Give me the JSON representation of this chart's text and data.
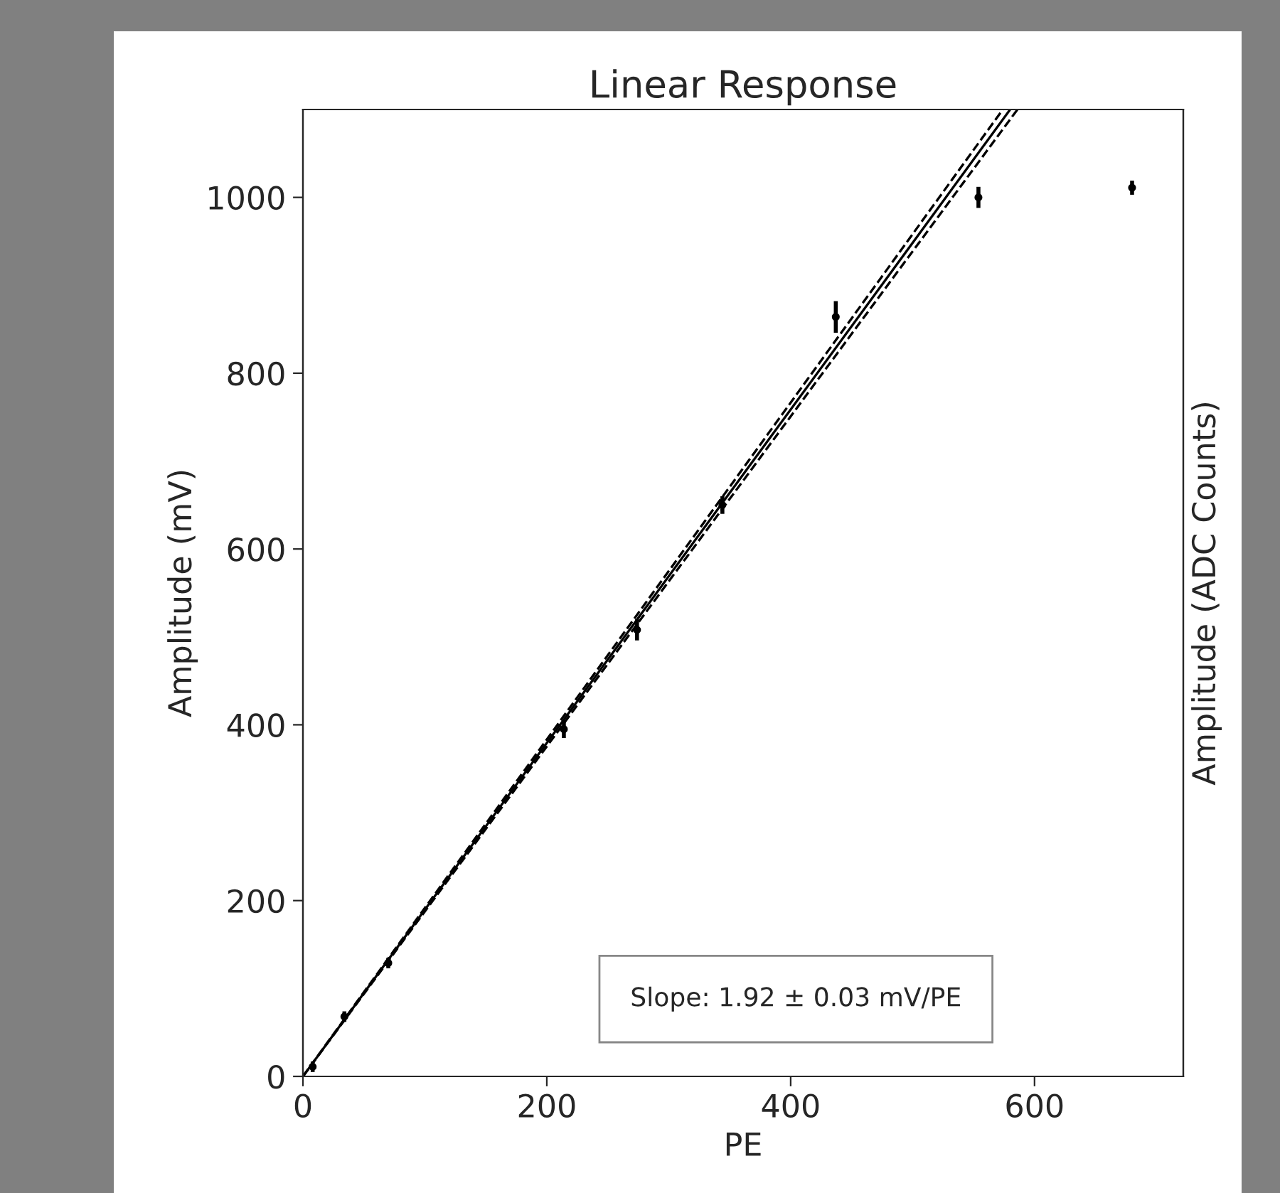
{
  "chart_data": {
    "type": "scatter",
    "title": "Linear Response",
    "xlabel": "PE",
    "ylabel": "Amplitude (mV)",
    "y2label": "Amplitude (ADC Counts)",
    "xlim": [
      0,
      722
    ],
    "ylim": [
      0,
      1100
    ],
    "xticks": [
      0,
      200,
      400,
      600
    ],
    "yticks": [
      0,
      200,
      400,
      600,
      800,
      1000
    ],
    "grid": false,
    "legend": false,
    "series": [
      {
        "color": "#000000",
        "marker": "circle",
        "x": [
          8,
          34,
          70,
          214,
          274,
          344,
          437,
          554,
          680
        ],
        "values": [
          11,
          68,
          129,
          395,
          508,
          650,
          864,
          1000,
          1011
        ],
        "errors": [
          6,
          6,
          6,
          10,
          12,
          10,
          18,
          12,
          8
        ]
      },
      {
        "type": "line",
        "color": "#000000",
        "line_style": "solid",
        "x": [
          0,
          580
        ],
        "values": [
          0,
          1100
        ]
      },
      {
        "type": "line",
        "color": "#000000",
        "line_style": "dashed",
        "x": [
          0,
          574
        ],
        "values": [
          0,
          1100
        ]
      },
      {
        "type": "line",
        "color": "#000000",
        "line_style": "dashed",
        "x": [
          0,
          586
        ],
        "values": [
          0,
          1100
        ]
      }
    ],
    "annotations": [
      "Slope: 1.92 ± 0.03 mV/PE"
    ]
  }
}
